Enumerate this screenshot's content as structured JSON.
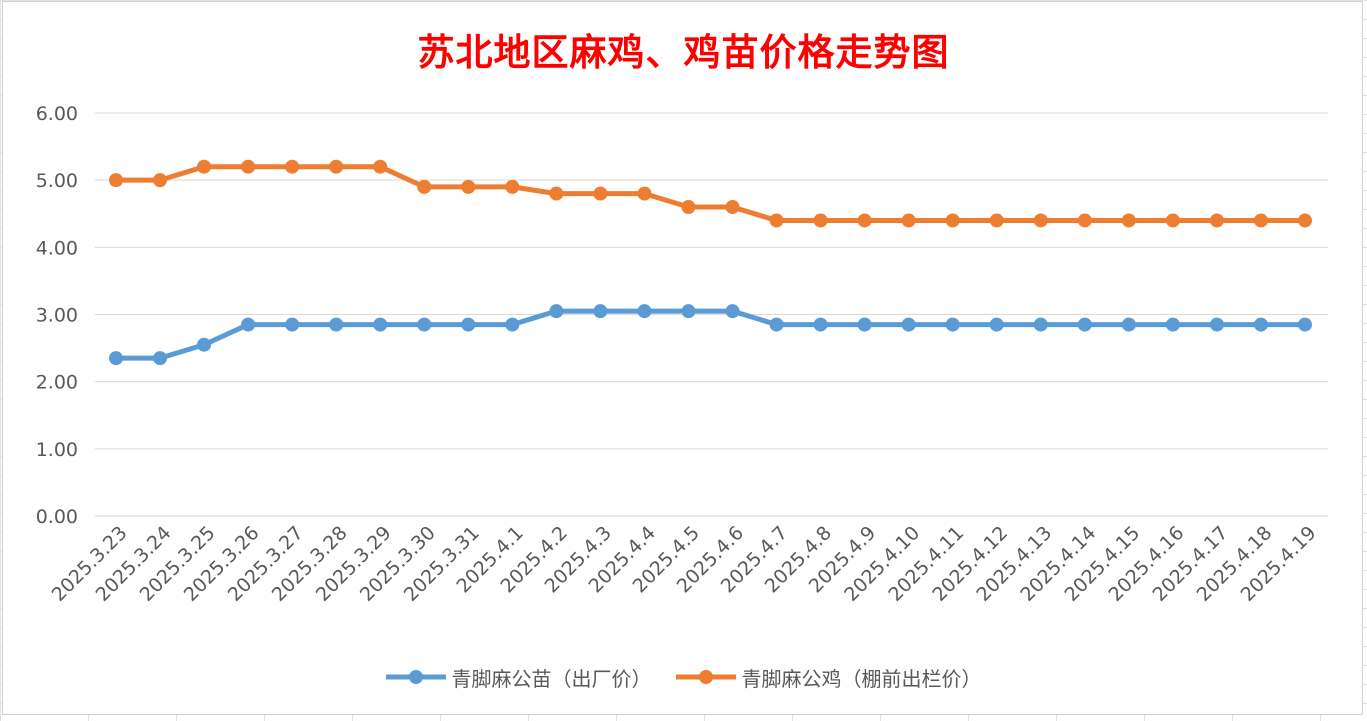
{
  "chart_data": {
    "type": "line",
    "title": "苏北地区麻鸡、鸡苗价格走势图",
    "xlabel": "",
    "ylabel": "",
    "ylim": [
      0,
      6
    ],
    "yticks": [
      "0.00",
      "1.00",
      "2.00",
      "3.00",
      "4.00",
      "5.00",
      "6.00"
    ],
    "grid": true,
    "legend": "bottom",
    "categories": [
      "2025.3.23",
      "2025.3.24",
      "2025.3.25",
      "2025.3.26",
      "2025.3.27",
      "2025.3.28",
      "2025.3.29",
      "2025.3.30",
      "2025.3.31",
      "2025.4.1",
      "2025.4.2",
      "2025.4.3",
      "2025.4.4",
      "2025.4.5",
      "2025.4.6",
      "2025.4.7",
      "2025.4.8",
      "2025.4.9",
      "2025.4.10",
      "2025.4.11",
      "2025.4.12",
      "2025.4.13",
      "2025.4.14",
      "2025.4.15",
      "2025.4.16",
      "2025.4.17",
      "2025.4.18",
      "2025.4.19"
    ],
    "series": [
      {
        "name": "青脚麻公苗（出厂价）",
        "color": "#5b9bd5",
        "values": [
          2.35,
          2.35,
          2.55,
          2.85,
          2.85,
          2.85,
          2.85,
          2.85,
          2.85,
          2.85,
          3.05,
          3.05,
          3.05,
          3.05,
          3.05,
          2.85,
          2.85,
          2.85,
          2.85,
          2.85,
          2.85,
          2.85,
          2.85,
          2.85,
          2.85,
          2.85,
          2.85,
          2.85
        ]
      },
      {
        "name": "青脚麻公鸡（棚前出栏价）",
        "color": "#ed7d31",
        "values": [
          5.0,
          5.0,
          5.2,
          5.2,
          5.2,
          5.2,
          5.2,
          4.9,
          4.9,
          4.9,
          4.8,
          4.8,
          4.8,
          4.6,
          4.6,
          4.4,
          4.4,
          4.4,
          4.4,
          4.4,
          4.4,
          4.4,
          4.4,
          4.4,
          4.4,
          4.4,
          4.4,
          4.4
        ]
      }
    ]
  }
}
